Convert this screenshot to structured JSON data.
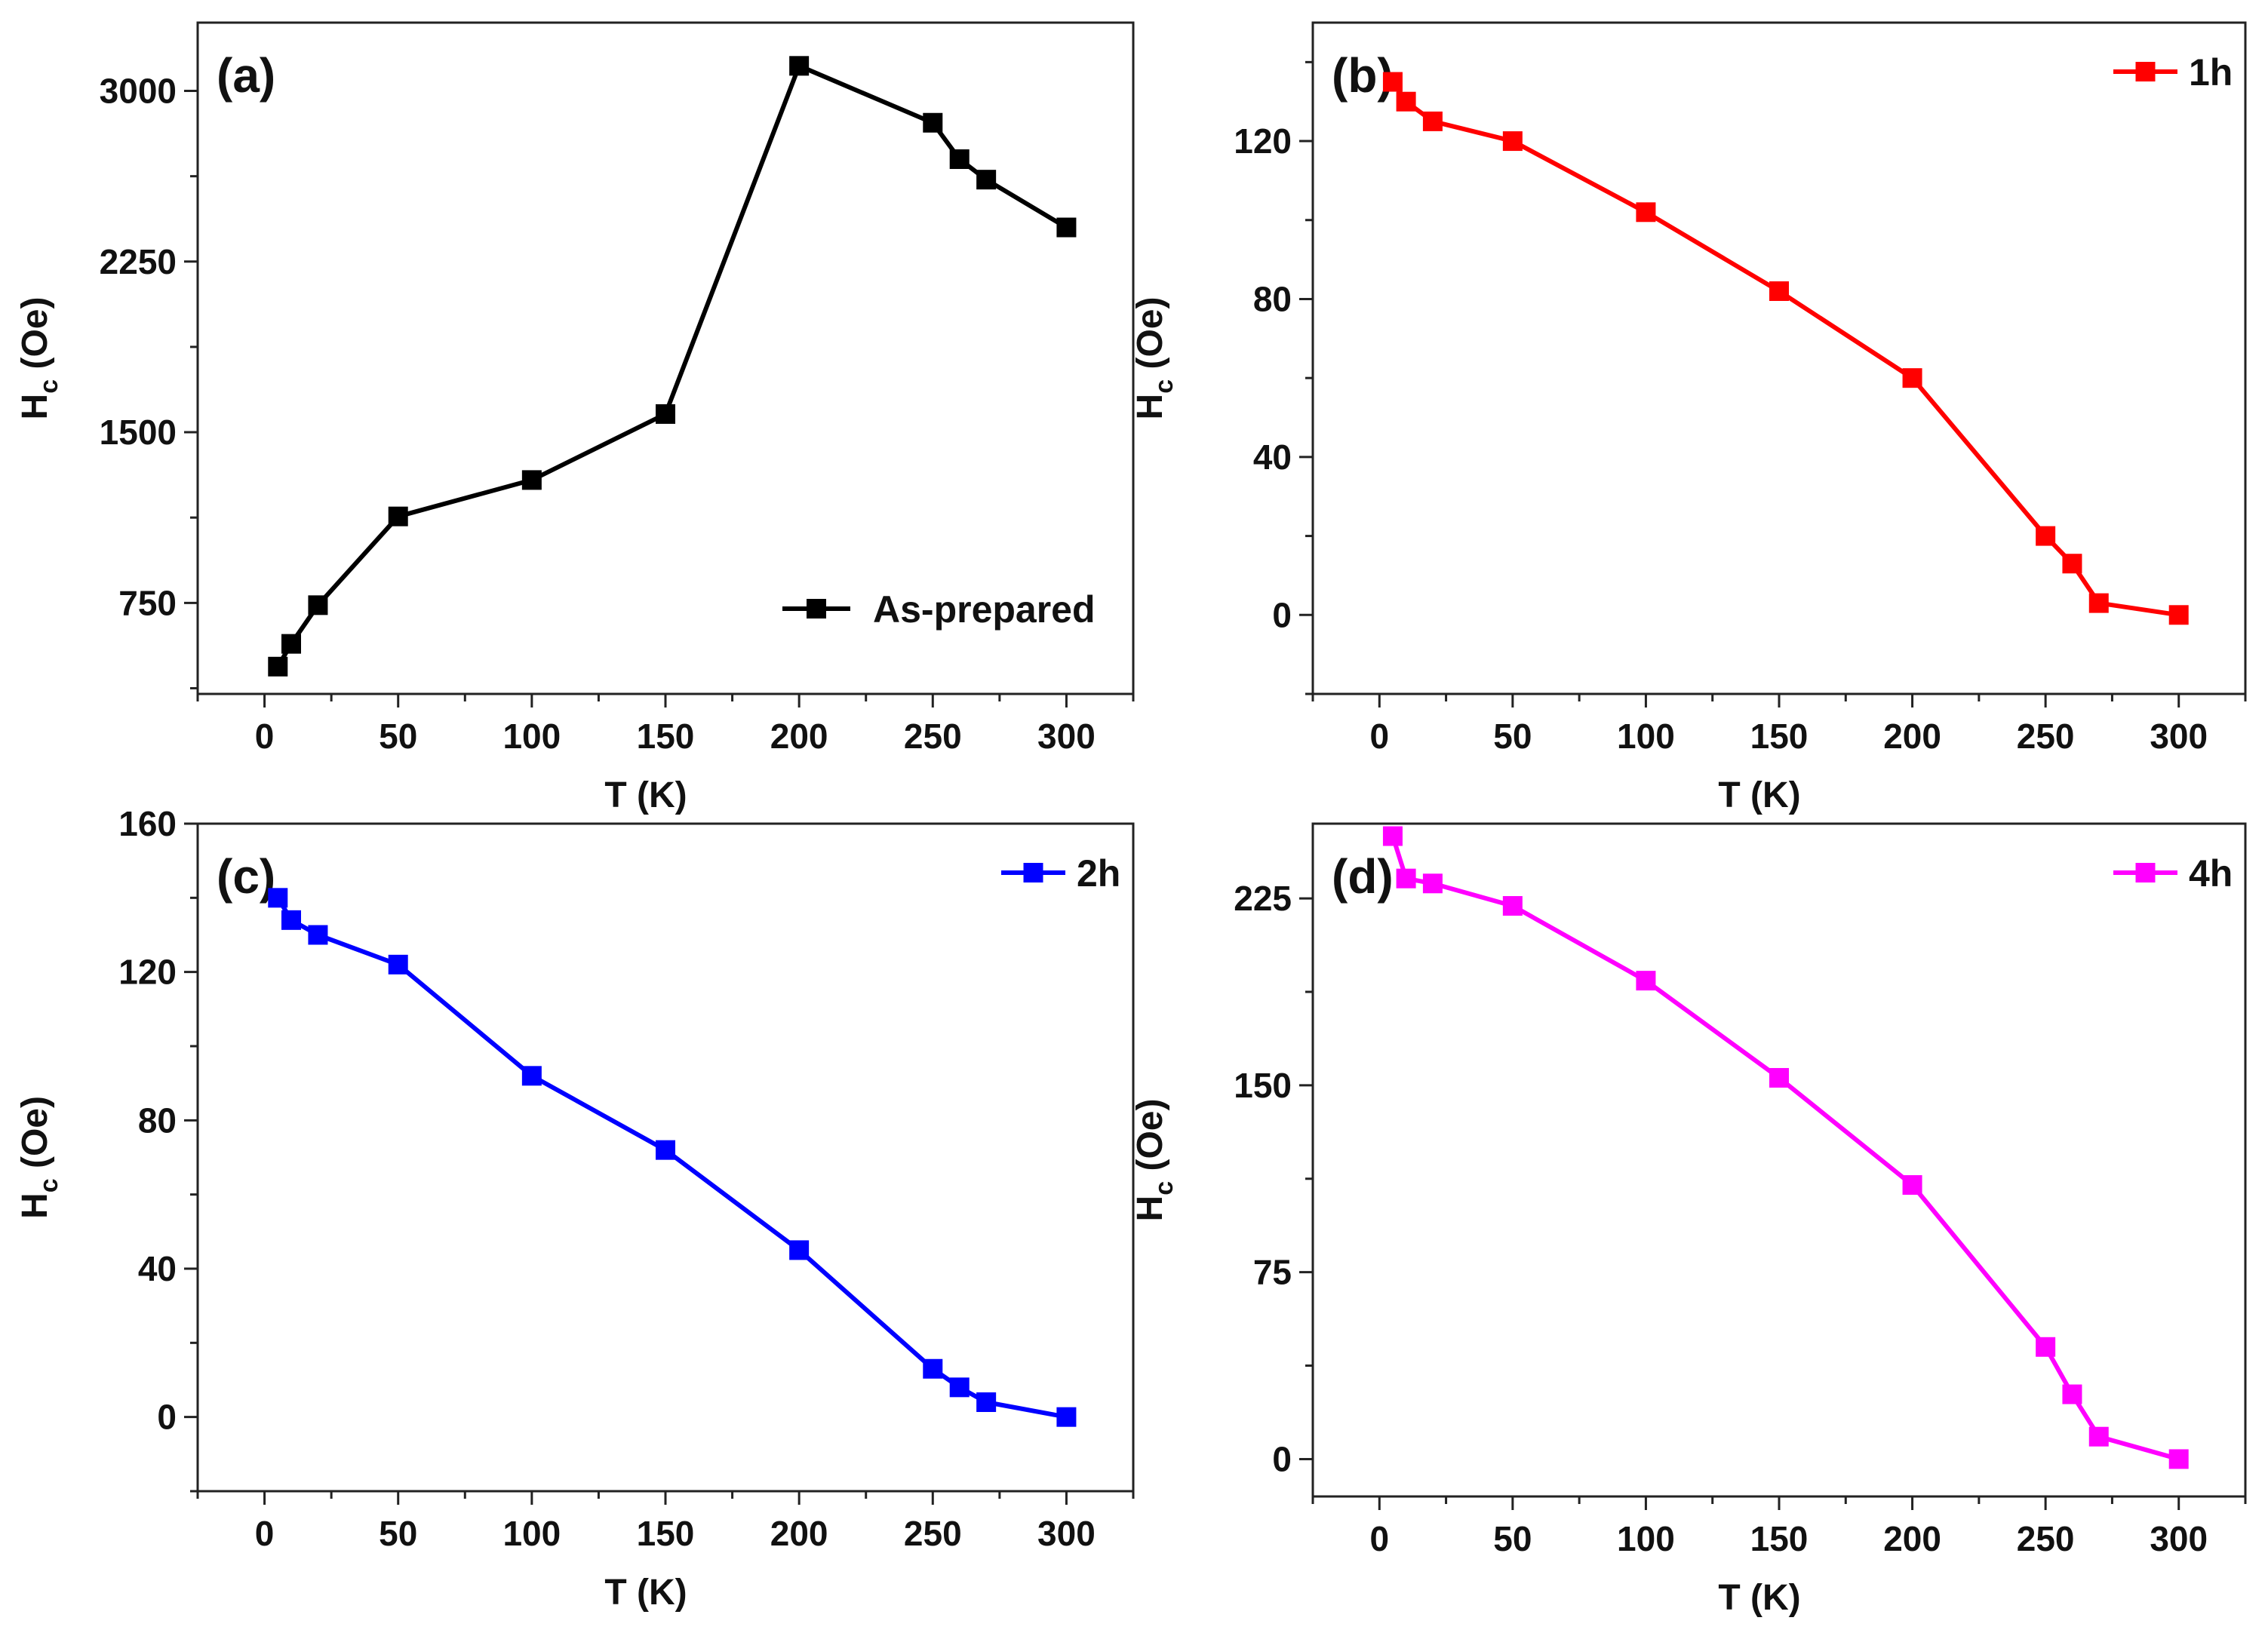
{
  "chart_data": [
    {
      "type": "line",
      "panel_label": "(a)",
      "xlabel": "T (K)",
      "ylabel": "H",
      "ylabel_sub": "c",
      "ylabel_unit": "(Oe)",
      "xlim": [
        -25,
        325
      ],
      "ylim": [
        350,
        3300
      ],
      "xticks": [
        0,
        50,
        100,
        150,
        200,
        250,
        300
      ],
      "yticks": [
        750,
        1500,
        2250,
        3000
      ],
      "legend": "bottom-right",
      "series": [
        {
          "name": "As-prepared",
          "color": "#000000",
          "x": [
            5,
            10,
            20,
            50,
            100,
            150,
            200,
            250,
            260,
            270,
            300
          ],
          "y": [
            470,
            570,
            740,
            1130,
            1290,
            1580,
            3110,
            2860,
            2700,
            2610,
            2400
          ]
        }
      ]
    },
    {
      "type": "line",
      "panel_label": "(b)",
      "xlabel": "T (K)",
      "ylabel": "H",
      "ylabel_sub": "c",
      "ylabel_unit": "(Oe)",
      "xlim": [
        -25,
        325
      ],
      "ylim": [
        -20,
        150
      ],
      "xticks": [
        0,
        50,
        100,
        150,
        200,
        250,
        300
      ],
      "yticks": [
        0,
        40,
        80,
        120
      ],
      "legend": "top-right",
      "series": [
        {
          "name": "1h",
          "color": "#ff0000",
          "x": [
            5,
            10,
            20,
            50,
            100,
            150,
            200,
            250,
            260,
            270,
            300
          ],
          "y": [
            135,
            130,
            125,
            120,
            102,
            82,
            60,
            20,
            13,
            3,
            0
          ]
        }
      ]
    },
    {
      "type": "line",
      "panel_label": "(c)",
      "xlabel": "T (K)",
      "ylabel": "H",
      "ylabel_sub": "c",
      "ylabel_unit": "(Oe)",
      "xlim": [
        -25,
        325
      ],
      "ylim": [
        -20,
        160
      ],
      "xticks": [
        0,
        50,
        100,
        150,
        200,
        250,
        300
      ],
      "yticks": [
        0,
        40,
        80,
        120,
        160
      ],
      "legend": "top-right",
      "series": [
        {
          "name": "2h",
          "color": "#0000ff",
          "x": [
            5,
            10,
            20,
            50,
            100,
            150,
            200,
            250,
            260,
            270,
            300
          ],
          "y": [
            140,
            134,
            130,
            122,
            92,
            72,
            45,
            13,
            8,
            4,
            0
          ]
        }
      ]
    },
    {
      "type": "line",
      "panel_label": "(d)",
      "xlabel": "T (K)",
      "ylabel": "H",
      "ylabel_sub": "c",
      "ylabel_unit": "(Oe)",
      "xlim": [
        -25,
        325
      ],
      "ylim": [
        -15,
        255
      ],
      "xticks": [
        0,
        50,
        100,
        150,
        200,
        250,
        300
      ],
      "yticks": [
        0,
        75,
        150,
        225
      ],
      "legend": "top-right",
      "series": [
        {
          "name": "4h",
          "color": "#ff00ff",
          "x": [
            5,
            10,
            20,
            50,
            100,
            150,
            200,
            250,
            260,
            270,
            300
          ],
          "y": [
            250,
            233,
            231,
            222,
            192,
            153,
            110,
            45,
            26,
            9,
            0
          ]
        }
      ]
    }
  ]
}
